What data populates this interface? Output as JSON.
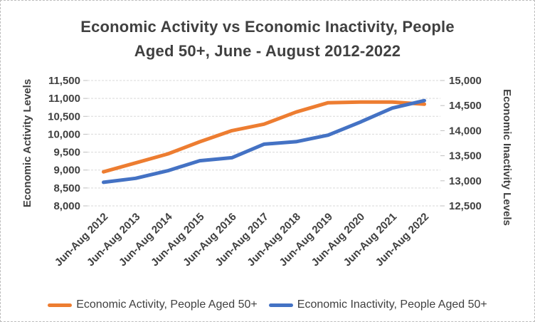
{
  "title": {
    "line1": "Economic Activity vs Economic Inactivity, People",
    "line2": "Aged 50+, June - August 2012-2022"
  },
  "chart_data": {
    "type": "line",
    "categories": [
      "Jun-Aug 2012",
      "Jun-Aug 2013",
      "Jun-Aug 2014",
      "Jun-Aug 2015",
      "Jun-Aug 2016",
      "Jun-Aug 2017",
      "Jun-Aug 2018",
      "Jun-Aug 2019",
      "Jun-Aug 2020",
      "Jun-Aug 2021",
      "Jun-Aug 2022"
    ],
    "series": [
      {
        "name": "Economic Activity, People Aged 50+",
        "slug": "economic-activity",
        "axis": "left",
        "color": "#ED7D31",
        "values": [
          8950,
          9200,
          9450,
          9790,
          10100,
          10280,
          10620,
          10880,
          10900,
          10900,
          10840
        ]
      },
      {
        "name": "Economic Inactivity, People Aged 50+",
        "slug": "economic-inactivity",
        "axis": "right",
        "color": "#4472C4",
        "values": [
          12970,
          13050,
          13200,
          13400,
          13460,
          13730,
          13780,
          13910,
          14170,
          14450,
          14600
        ]
      }
    ],
    "left_axis": {
      "label": "Economic Activity Levels",
      "min": 8000,
      "max": 11500,
      "step": 500,
      "ticks": [
        "11,500",
        "11,000",
        "10,500",
        "10,000",
        "9,500",
        "9,000",
        "8,500",
        "8,000"
      ]
    },
    "right_axis": {
      "label": "Economic Inactivity Levels",
      "min": 12500,
      "max": 15000,
      "step": 500,
      "ticks": [
        "15,000",
        "14,500",
        "14,000",
        "13,500",
        "13,000",
        "12,500"
      ]
    },
    "grid": true,
    "legend_position": "bottom"
  },
  "colors": {
    "text": "#404040",
    "gridline": "#D9D9D9",
    "tick_mark": "#BFBFBF",
    "activity_line": "#ED7D31",
    "inactivity_line": "#4472C4"
  }
}
